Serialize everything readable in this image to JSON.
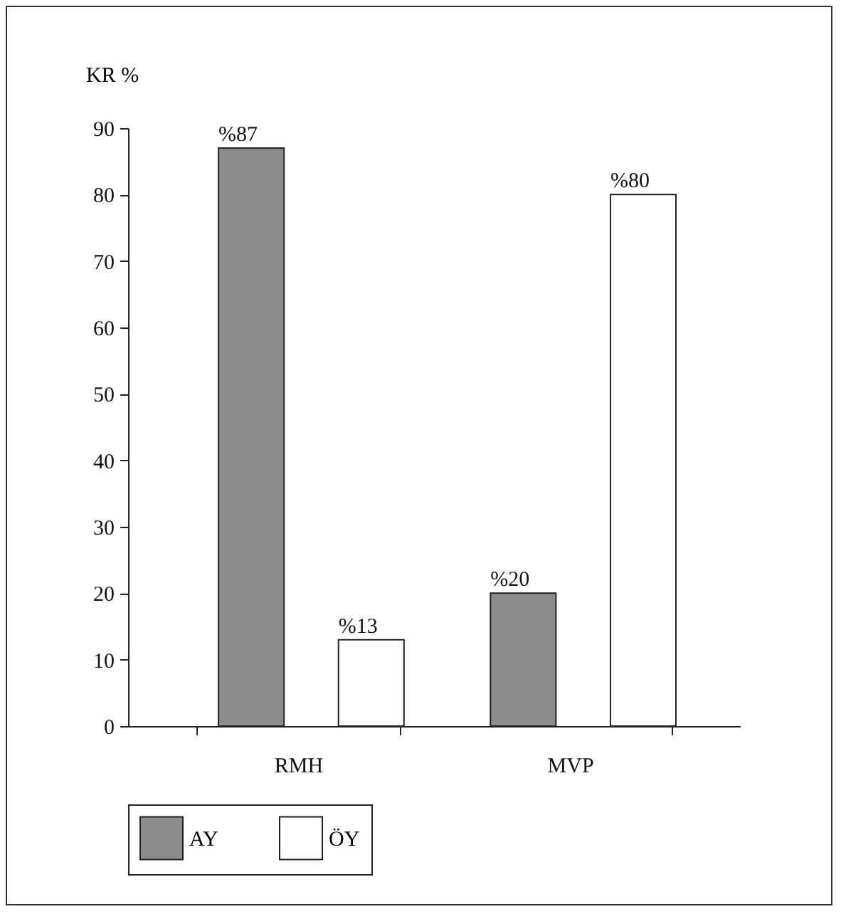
{
  "chart_data": {
    "type": "bar",
    "ylabel": "KR %",
    "categories": [
      "RMH",
      "MVP"
    ],
    "series": [
      {
        "name": "AY",
        "color": "#8c8c8c",
        "values": [
          87,
          20
        ],
        "value_labels": [
          "%87",
          "%20"
        ]
      },
      {
        "name": "ÖY",
        "color": "#ffffff",
        "values": [
          13,
          80
        ],
        "value_labels": [
          "%13",
          "%80"
        ]
      }
    ],
    "ylim": [
      0,
      90
    ],
    "yticks": [
      0,
      10,
      20,
      30,
      40,
      50,
      60,
      70,
      80,
      90
    ],
    "grid": false,
    "legend": "bottom"
  }
}
